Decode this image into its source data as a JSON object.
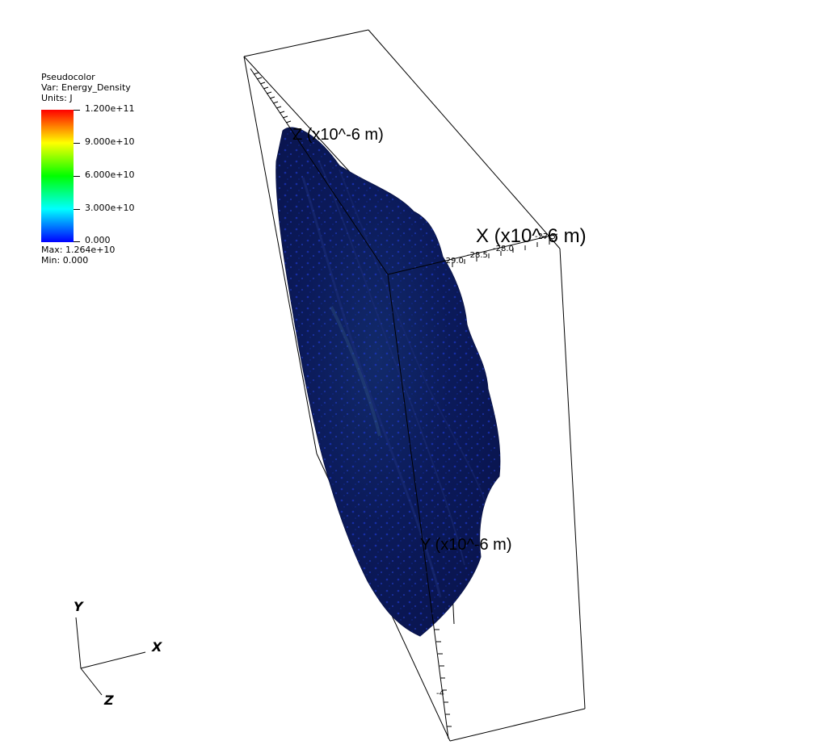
{
  "legend": {
    "plot_type": "Pseudocolor",
    "var_line": "Var: Energy_Density",
    "units_line": "Units: J",
    "ticks": [
      "1.200e+11",
      "9.000e+10",
      "6.000e+10",
      "3.000e+10",
      "0.000"
    ],
    "max_line": "Max:  1.264e+10",
    "min_line": "Min:  0.000",
    "colormap": [
      "#0000ff",
      "#00ffff",
      "#00ff00",
      "#ffff00",
      "#ff0000"
    ]
  },
  "axes": {
    "x_title": "X (x10^-6 m)",
    "y_title": "Y (x10^-6 m)",
    "z_title": "Z (x10^-6 m)",
    "x_ticks": [
      "-29.0",
      "-28.5",
      "-28.0",
      "-27.5"
    ],
    "y_ticks": [
      "-4"
    ]
  },
  "triad": {
    "x": "X",
    "y": "Y",
    "z": "Z"
  },
  "colors": {
    "isosurface": "#0b1550",
    "isosurface_highlight": "#1a2fb0",
    "background": "#ffffff"
  }
}
